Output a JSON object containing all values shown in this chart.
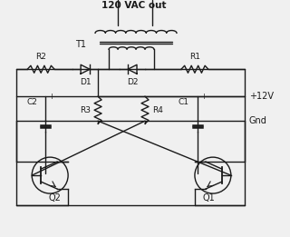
{
  "bg_color": "#f0f0f0",
  "line_color": "#1a1a1a",
  "title": "120 VAC out",
  "label_T1": "T1",
  "label_R1": "R1",
  "label_R2": "R2",
  "label_R3": "R3",
  "label_R4": "R4",
  "label_D1": "D1",
  "label_D2": "D2",
  "label_C1": "C1",
  "label_C2": "C2",
  "label_Q1": "Q1",
  "label_Q2": "Q2",
  "label_12V": "+12V",
  "label_Gnd": "Gnd"
}
